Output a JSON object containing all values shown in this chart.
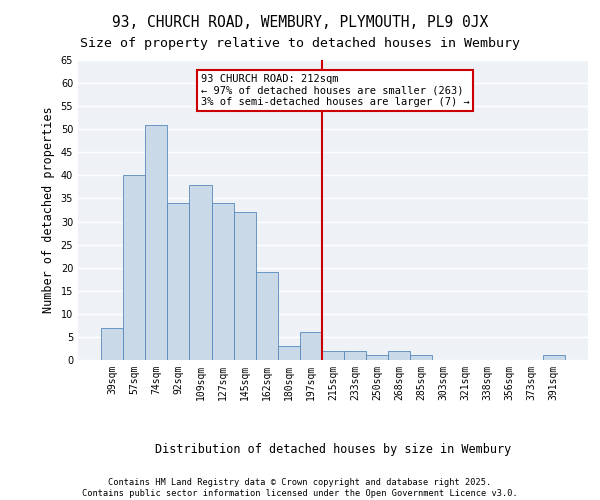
{
  "title_line1": "93, CHURCH ROAD, WEMBURY, PLYMOUTH, PL9 0JX",
  "title_line2": "Size of property relative to detached houses in Wembury",
  "xlabel": "Distribution of detached houses by size in Wembury",
  "ylabel": "Number of detached properties",
  "categories": [
    "39sqm",
    "57sqm",
    "74sqm",
    "92sqm",
    "109sqm",
    "127sqm",
    "145sqm",
    "162sqm",
    "180sqm",
    "197sqm",
    "215sqm",
    "233sqm",
    "250sqm",
    "268sqm",
    "285sqm",
    "303sqm",
    "321sqm",
    "338sqm",
    "356sqm",
    "373sqm",
    "391sqm"
  ],
  "values": [
    7,
    40,
    51,
    34,
    38,
    34,
    32,
    19,
    3,
    6,
    2,
    2,
    1,
    2,
    1,
    0,
    0,
    0,
    0,
    0,
    1
  ],
  "bar_color": "#c9d9e8",
  "bar_edge_color": "#5588bb",
  "vline_color": "#cc0000",
  "annotation_text": "93 CHURCH ROAD: 212sqm\n← 97% of detached houses are smaller (263)\n3% of semi-detached houses are larger (7) →",
  "annotation_box_color": "#cc0000",
  "ylim": [
    0,
    65
  ],
  "yticks": [
    0,
    5,
    10,
    15,
    20,
    25,
    30,
    35,
    40,
    45,
    50,
    55,
    60,
    65
  ],
  "background_color": "#eef2f7",
  "grid_color": "#ffffff",
  "footer_text": "Contains HM Land Registry data © Crown copyright and database right 2025.\nContains public sector information licensed under the Open Government Licence v3.0.",
  "title_fontsize": 10.5,
  "subtitle_fontsize": 9.5,
  "axis_label_fontsize": 8.5,
  "tick_fontsize": 7,
  "annotation_fontsize": 7.5
}
